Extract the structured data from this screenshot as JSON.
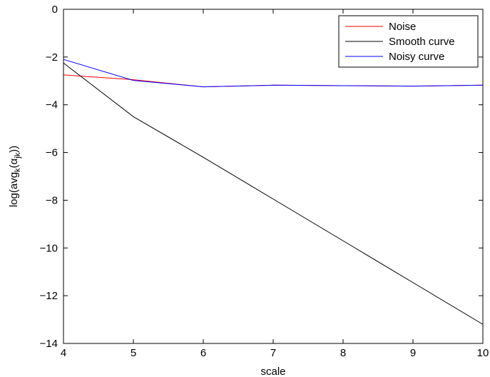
{
  "chart_data": {
    "type": "line",
    "title": "",
    "xlabel": "scale",
    "ylabel_parts": {
      "main": "log(avg",
      "sub_k": "k",
      "open": "(α",
      "sub_jk": "jk",
      "close": "))"
    },
    "xlim": [
      4,
      10
    ],
    "ylim": [
      -14,
      0
    ],
    "xticks": [
      4,
      5,
      6,
      7,
      8,
      9,
      10
    ],
    "yticks": [
      0,
      -2,
      -4,
      -6,
      -8,
      -10,
      -12,
      -14
    ],
    "grid": false,
    "legend_position": "top-right",
    "x": [
      4,
      5,
      6,
      7,
      8,
      9,
      10
    ],
    "series": [
      {
        "name": "Noise",
        "color": "#ff0000",
        "values": [
          -2.75,
          -2.95,
          -3.25,
          -3.18,
          -3.2,
          -3.22,
          -3.18
        ]
      },
      {
        "name": "Smooth curve",
        "color": "#000000",
        "values": [
          -2.25,
          -4.5,
          -6.2,
          -7.95,
          -9.7,
          -11.45,
          -13.2
        ]
      },
      {
        "name": "Noisy curve",
        "color": "#0000ff",
        "values": [
          -2.1,
          -2.98,
          -3.25,
          -3.18,
          -3.2,
          -3.22,
          -3.18
        ]
      }
    ]
  }
}
